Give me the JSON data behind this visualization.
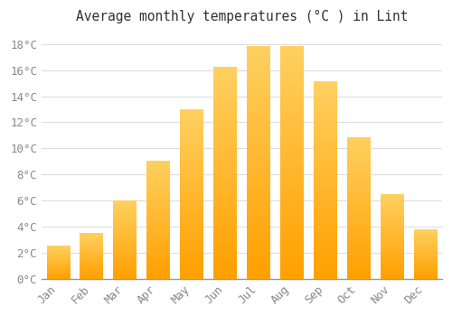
{
  "title": "Average monthly temperatures (°C ) in Lint",
  "months": [
    "Jan",
    "Feb",
    "Mar",
    "Apr",
    "May",
    "Jun",
    "Jul",
    "Aug",
    "Sep",
    "Oct",
    "Nov",
    "Dec"
  ],
  "values": [
    2.5,
    3.5,
    6.0,
    9.0,
    13.0,
    16.2,
    17.8,
    17.8,
    15.1,
    10.8,
    6.5,
    3.8
  ],
  "bar_color": "#FFC020",
  "bar_edge_color": "#FFA500",
  "ylim": [
    0,
    19
  ],
  "yticks": [
    0,
    2,
    4,
    6,
    8,
    10,
    12,
    14,
    16,
    18
  ],
  "background_color": "#FFFFFF",
  "grid_color": "#DDDDDD",
  "title_fontsize": 10.5,
  "tick_fontsize": 9,
  "title_color": "#333333",
  "tick_color": "#888888"
}
